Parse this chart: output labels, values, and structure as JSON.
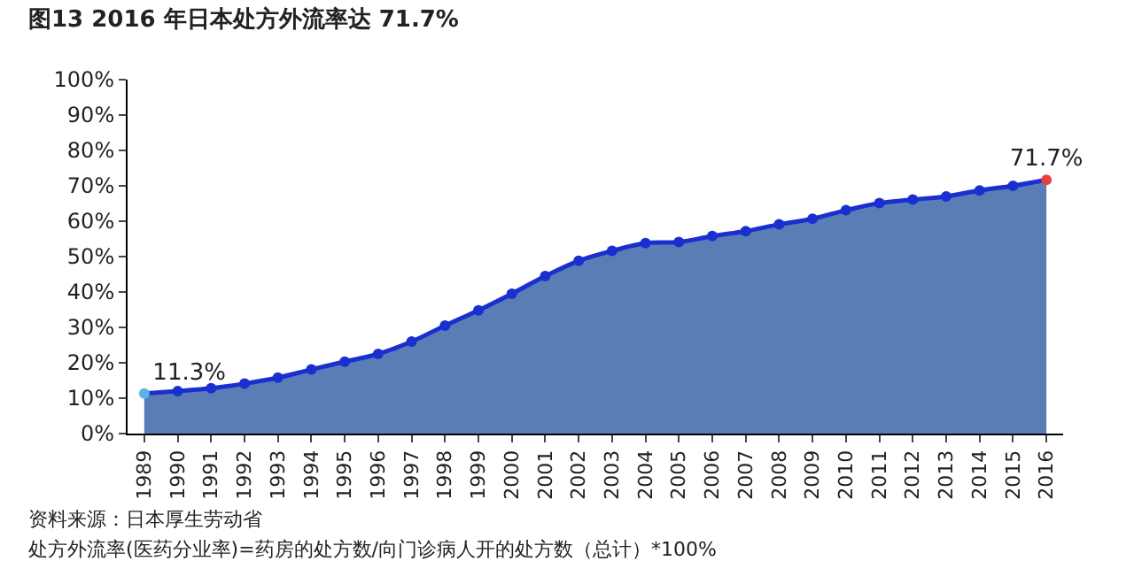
{
  "chart_data": {
    "type": "area",
    "title": "图13 2016 年日本处方外流率达 71.7%",
    "categories": [
      "1989",
      "1990",
      "1991",
      "1992",
      "1993",
      "1994",
      "1995",
      "1996",
      "1997",
      "1998",
      "1999",
      "2000",
      "2001",
      "2002",
      "2003",
      "2004",
      "2005",
      "2006",
      "2007",
      "2008",
      "2009",
      "2010",
      "2011",
      "2012",
      "2013",
      "2014",
      "2015",
      "2016"
    ],
    "series": [
      {
        "color": "#5b7db5",
        "colors": [
          "#5ab4e6",
          "#1a2fd0",
          "#1a2fd0",
          "#1a2fd0",
          "#1a2fd0",
          "#1a2fd0",
          "#1a2fd0",
          "#1a2fd0",
          "#1a2fd0",
          "#1a2fd0",
          "#1a2fd0",
          "#1a2fd0",
          "#1a2fd0",
          "#1a2fd0",
          "#1a2fd0",
          "#1a2fd0",
          "#1a2fd0",
          "#1a2fd0",
          "#1a2fd0",
          "#1a2fd0",
          "#1a2fd0",
          "#1a2fd0",
          "#1a2fd0",
          "#1a2fd0",
          "#1a2fd0",
          "#1a2fd0",
          "#1a2fd0",
          "#e8413a"
        ],
        "values": [
          11.3,
          12.0,
          12.8,
          14.1,
          15.8,
          18.1,
          20.3,
          22.5,
          26.0,
          30.5,
          34.8,
          39.5,
          44.5,
          48.8,
          51.6,
          53.8,
          54.1,
          55.8,
          57.2,
          59.1,
          60.7,
          63.1,
          65.1,
          66.1,
          67.0,
          68.7,
          70.0,
          71.7
        ],
        "value_labels": [
          "11.3%",
          null,
          null,
          null,
          null,
          null,
          null,
          null,
          null,
          null,
          null,
          null,
          null,
          null,
          null,
          null,
          null,
          null,
          null,
          null,
          null,
          null,
          null,
          null,
          null,
          null,
          null,
          "71.7%"
        ]
      }
    ],
    "ylim": [
      0,
      100
    ],
    "yticks": [
      {
        "value": 0,
        "label": "0%"
      },
      {
        "value": 10,
        "label": "10%"
      },
      {
        "value": 20,
        "label": "20%"
      },
      {
        "value": 30,
        "label": "30%"
      },
      {
        "value": 40,
        "label": "40%"
      },
      {
        "value": 50,
        "label": "50%"
      },
      {
        "value": 60,
        "label": "60%"
      },
      {
        "value": 70,
        "label": "70%"
      },
      {
        "value": 80,
        "label": "80%"
      },
      {
        "value": 90,
        "label": "90%"
      },
      {
        "value": 100,
        "label": "100%"
      }
    ],
    "marker": "circle",
    "annotations": [
      "资料来源：日本厚生劳动省",
      "处方外流率(医药分业率)=药房的处方数/向门诊病人开的处方数（总计）*100%"
    ]
  }
}
